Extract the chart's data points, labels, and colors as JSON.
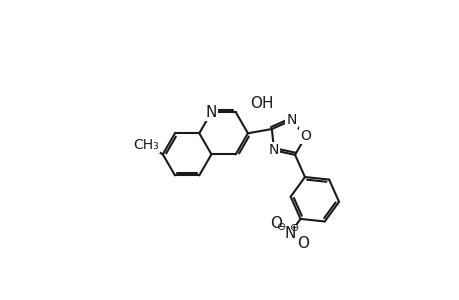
{
  "bg": "#ffffff",
  "lc": "#1a1a1a",
  "lw": 1.5,
  "fs": 10,
  "figsize": [
    4.6,
    3.0
  ],
  "dpi": 100,
  "xlim": [
    0,
    10
  ],
  "ylim": [
    -1,
    8.5
  ]
}
